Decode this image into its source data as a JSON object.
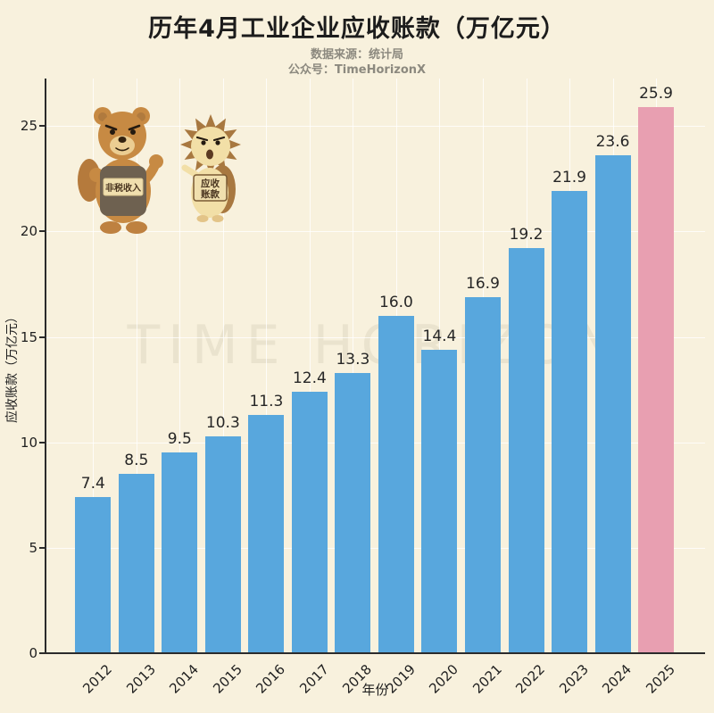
{
  "page": {
    "background": "#F8F1DD"
  },
  "header": {
    "title": "历年4月工业企业应收账款（万亿元）",
    "subtitle_line1": "数据来源：统计局",
    "subtitle_line2": "公众号：TimeHorizonX"
  },
  "watermark": "TIME HORIZON",
  "mascots": {
    "bear_sign": "非税收入",
    "hedgehog_sign_line1": "应收",
    "hedgehog_sign_line2": "账款"
  },
  "chart_data": {
    "type": "bar",
    "title": "历年4月工业企业应收账款（万亿元）",
    "categories": [
      "2012",
      "2013",
      "2014",
      "2015",
      "2016",
      "2017",
      "2018",
      "2019",
      "2020",
      "2021",
      "2022",
      "2023",
      "2024",
      "2025"
    ],
    "values": [
      7.4,
      8.5,
      9.5,
      10.3,
      11.3,
      12.4,
      13.3,
      16.0,
      14.4,
      16.9,
      19.2,
      21.9,
      23.6,
      25.9
    ],
    "value_labels": [
      "7.4",
      "8.5",
      "9.5",
      "10.3",
      "11.3",
      "12.4",
      "13.3",
      "16.0",
      "14.4",
      "16.9",
      "19.2",
      "21.9",
      "23.6",
      "25.9"
    ],
    "xlabel": "年份",
    "ylabel": "应收账款（万亿元）",
    "yticks": [
      0,
      5,
      10,
      15,
      20,
      25
    ],
    "ylim": [
      0,
      27.25
    ],
    "grid": true,
    "legend": "none",
    "bar_color": "#58A7DD",
    "highlight_color": "#E89FB1",
    "highlight_index": 13
  }
}
